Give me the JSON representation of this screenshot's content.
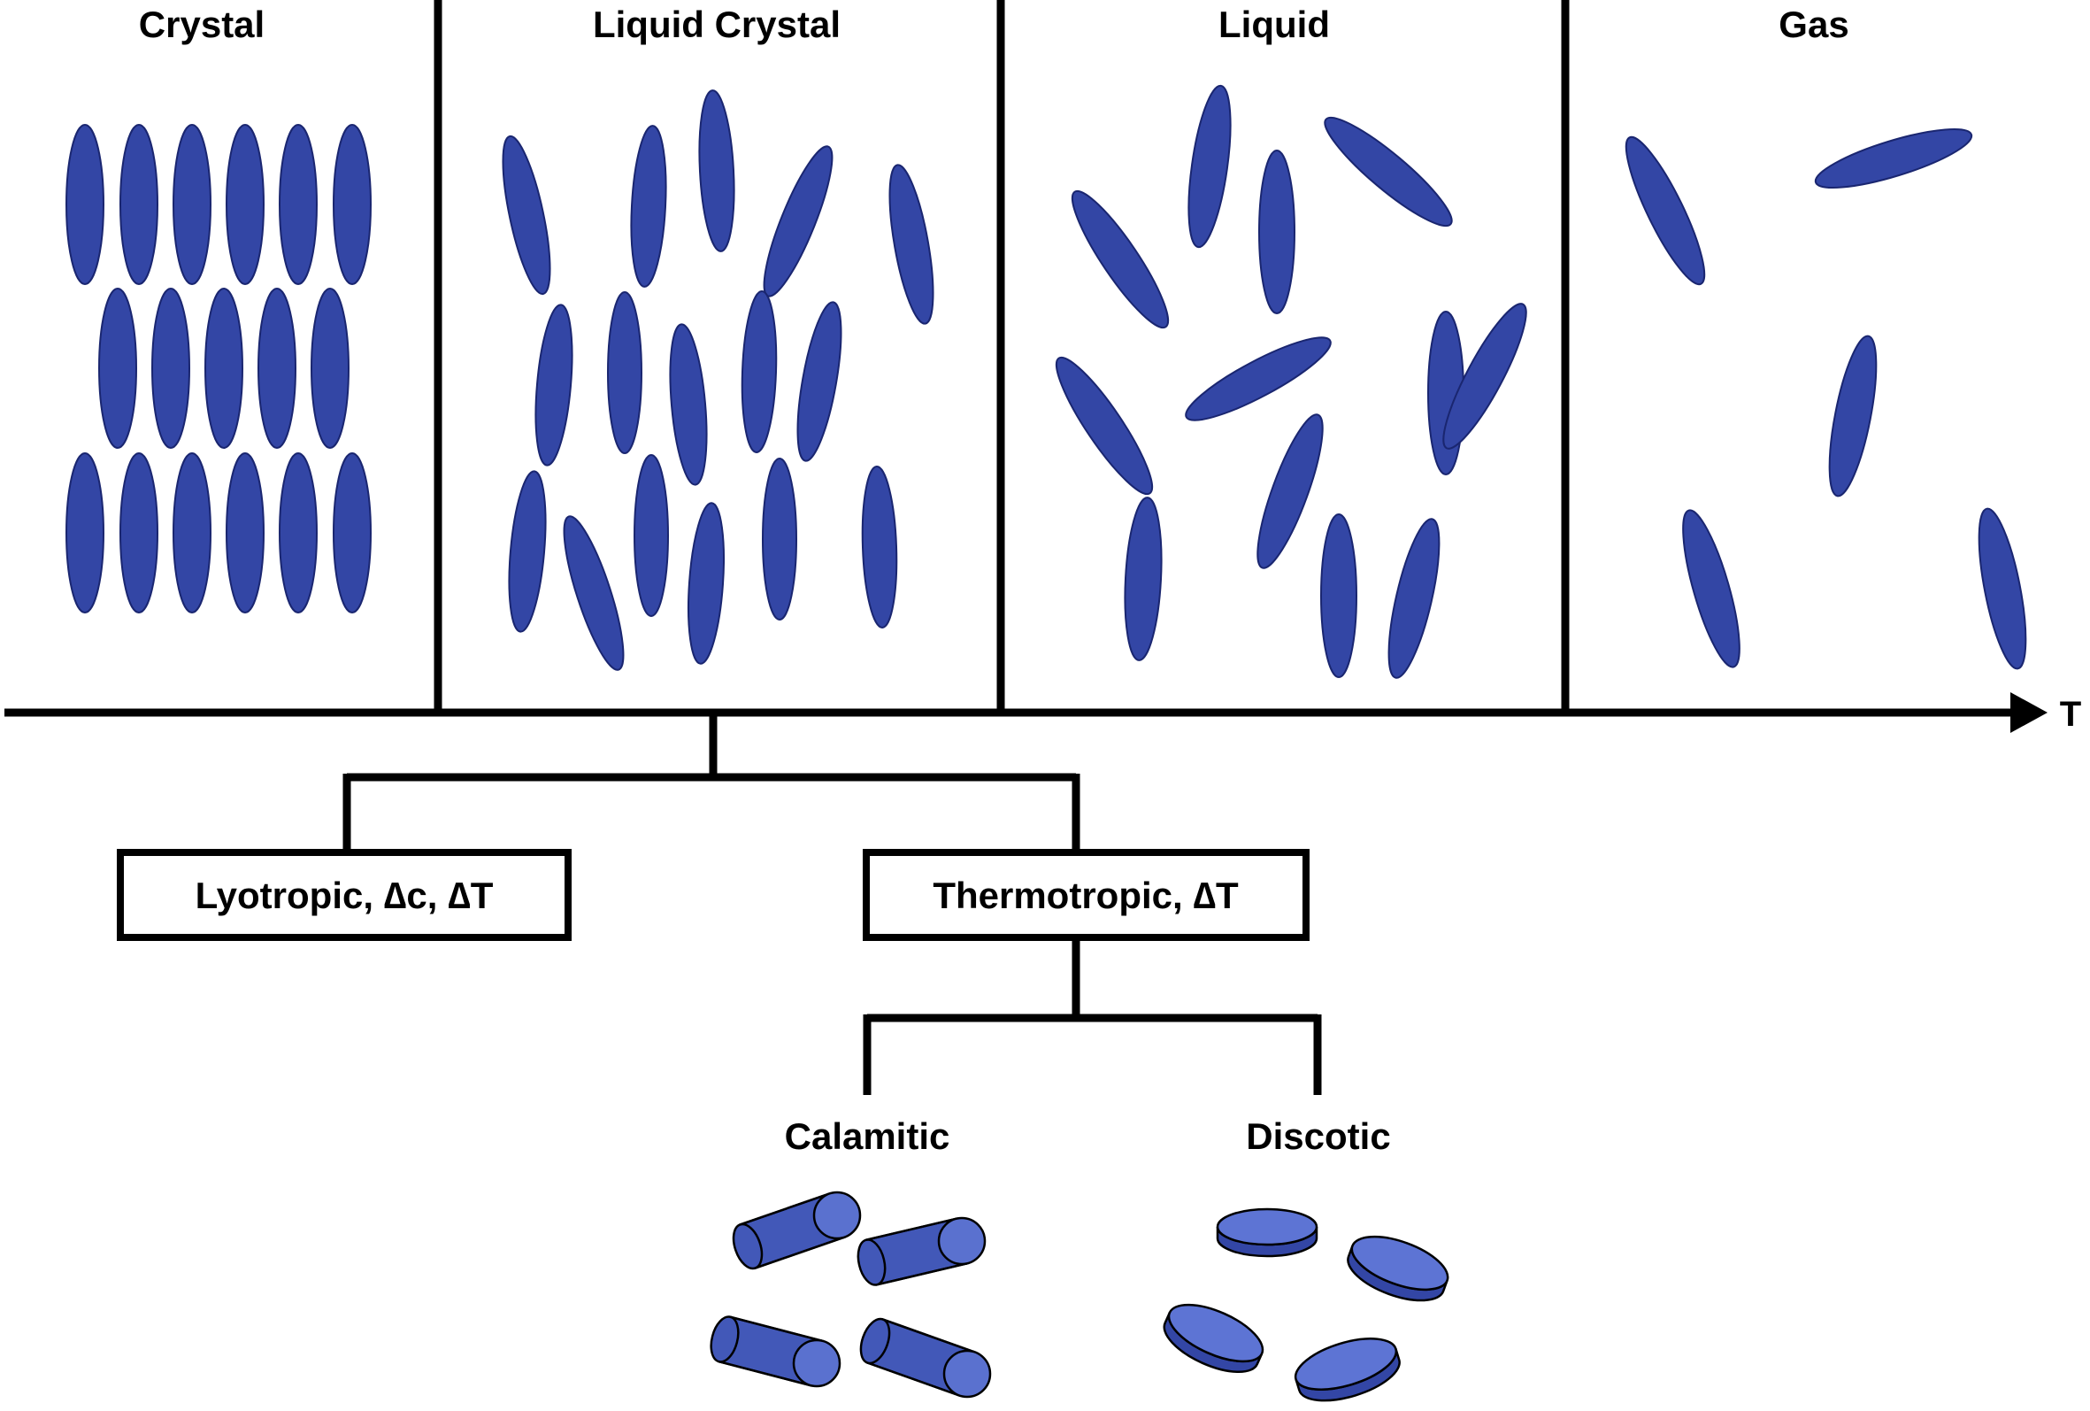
{
  "phases": [
    {
      "label": "Crystal"
    },
    {
      "label": "Liquid Crystal"
    },
    {
      "label": "Liquid"
    },
    {
      "label": "Gas"
    }
  ],
  "axis": {
    "label": "T"
  },
  "branches": {
    "lyotropic": "Lyotropic, ∆c, ∆T",
    "thermotropic": "Thermotropic, ∆T"
  },
  "molecule_types": {
    "calamitic": "Calamitic",
    "discotic": "Discotic"
  },
  "colors": {
    "molecule_fill": "#3346a5",
    "molecule_stroke": "#1a2670",
    "cylinder_body": "#4258b8",
    "cylinder_cap": "#5a71cf",
    "disc_top": "#5d74d4",
    "disc_side": "#3346a5",
    "line": "#000000"
  }
}
